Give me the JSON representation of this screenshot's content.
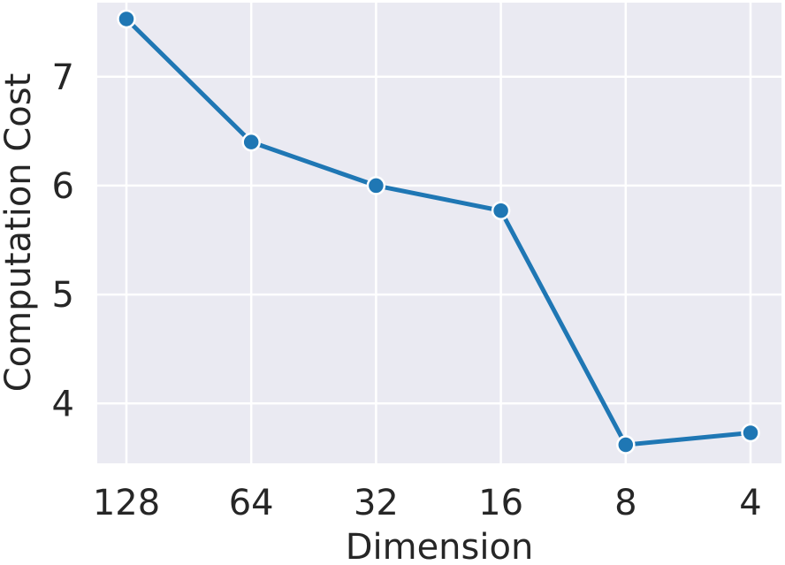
{
  "chart_data": {
    "type": "line",
    "xlabel": "Dimension",
    "ylabel": "Computation Cost",
    "categories": [
      "128",
      "64",
      "32",
      "16",
      "8",
      "4"
    ],
    "series": [
      {
        "values": [
          7.53,
          6.4,
          6.0,
          5.77,
          3.62,
          3.73
        ]
      }
    ],
    "ylim": [
      3.45,
      7.68
    ],
    "yticks": [
      4,
      5,
      6,
      7
    ],
    "grid": true,
    "colors": {
      "background": "#EAEAF2",
      "grid": "#FFFFFF",
      "line": "#1F77B4",
      "marker_edge": "#FFFFFF"
    }
  }
}
